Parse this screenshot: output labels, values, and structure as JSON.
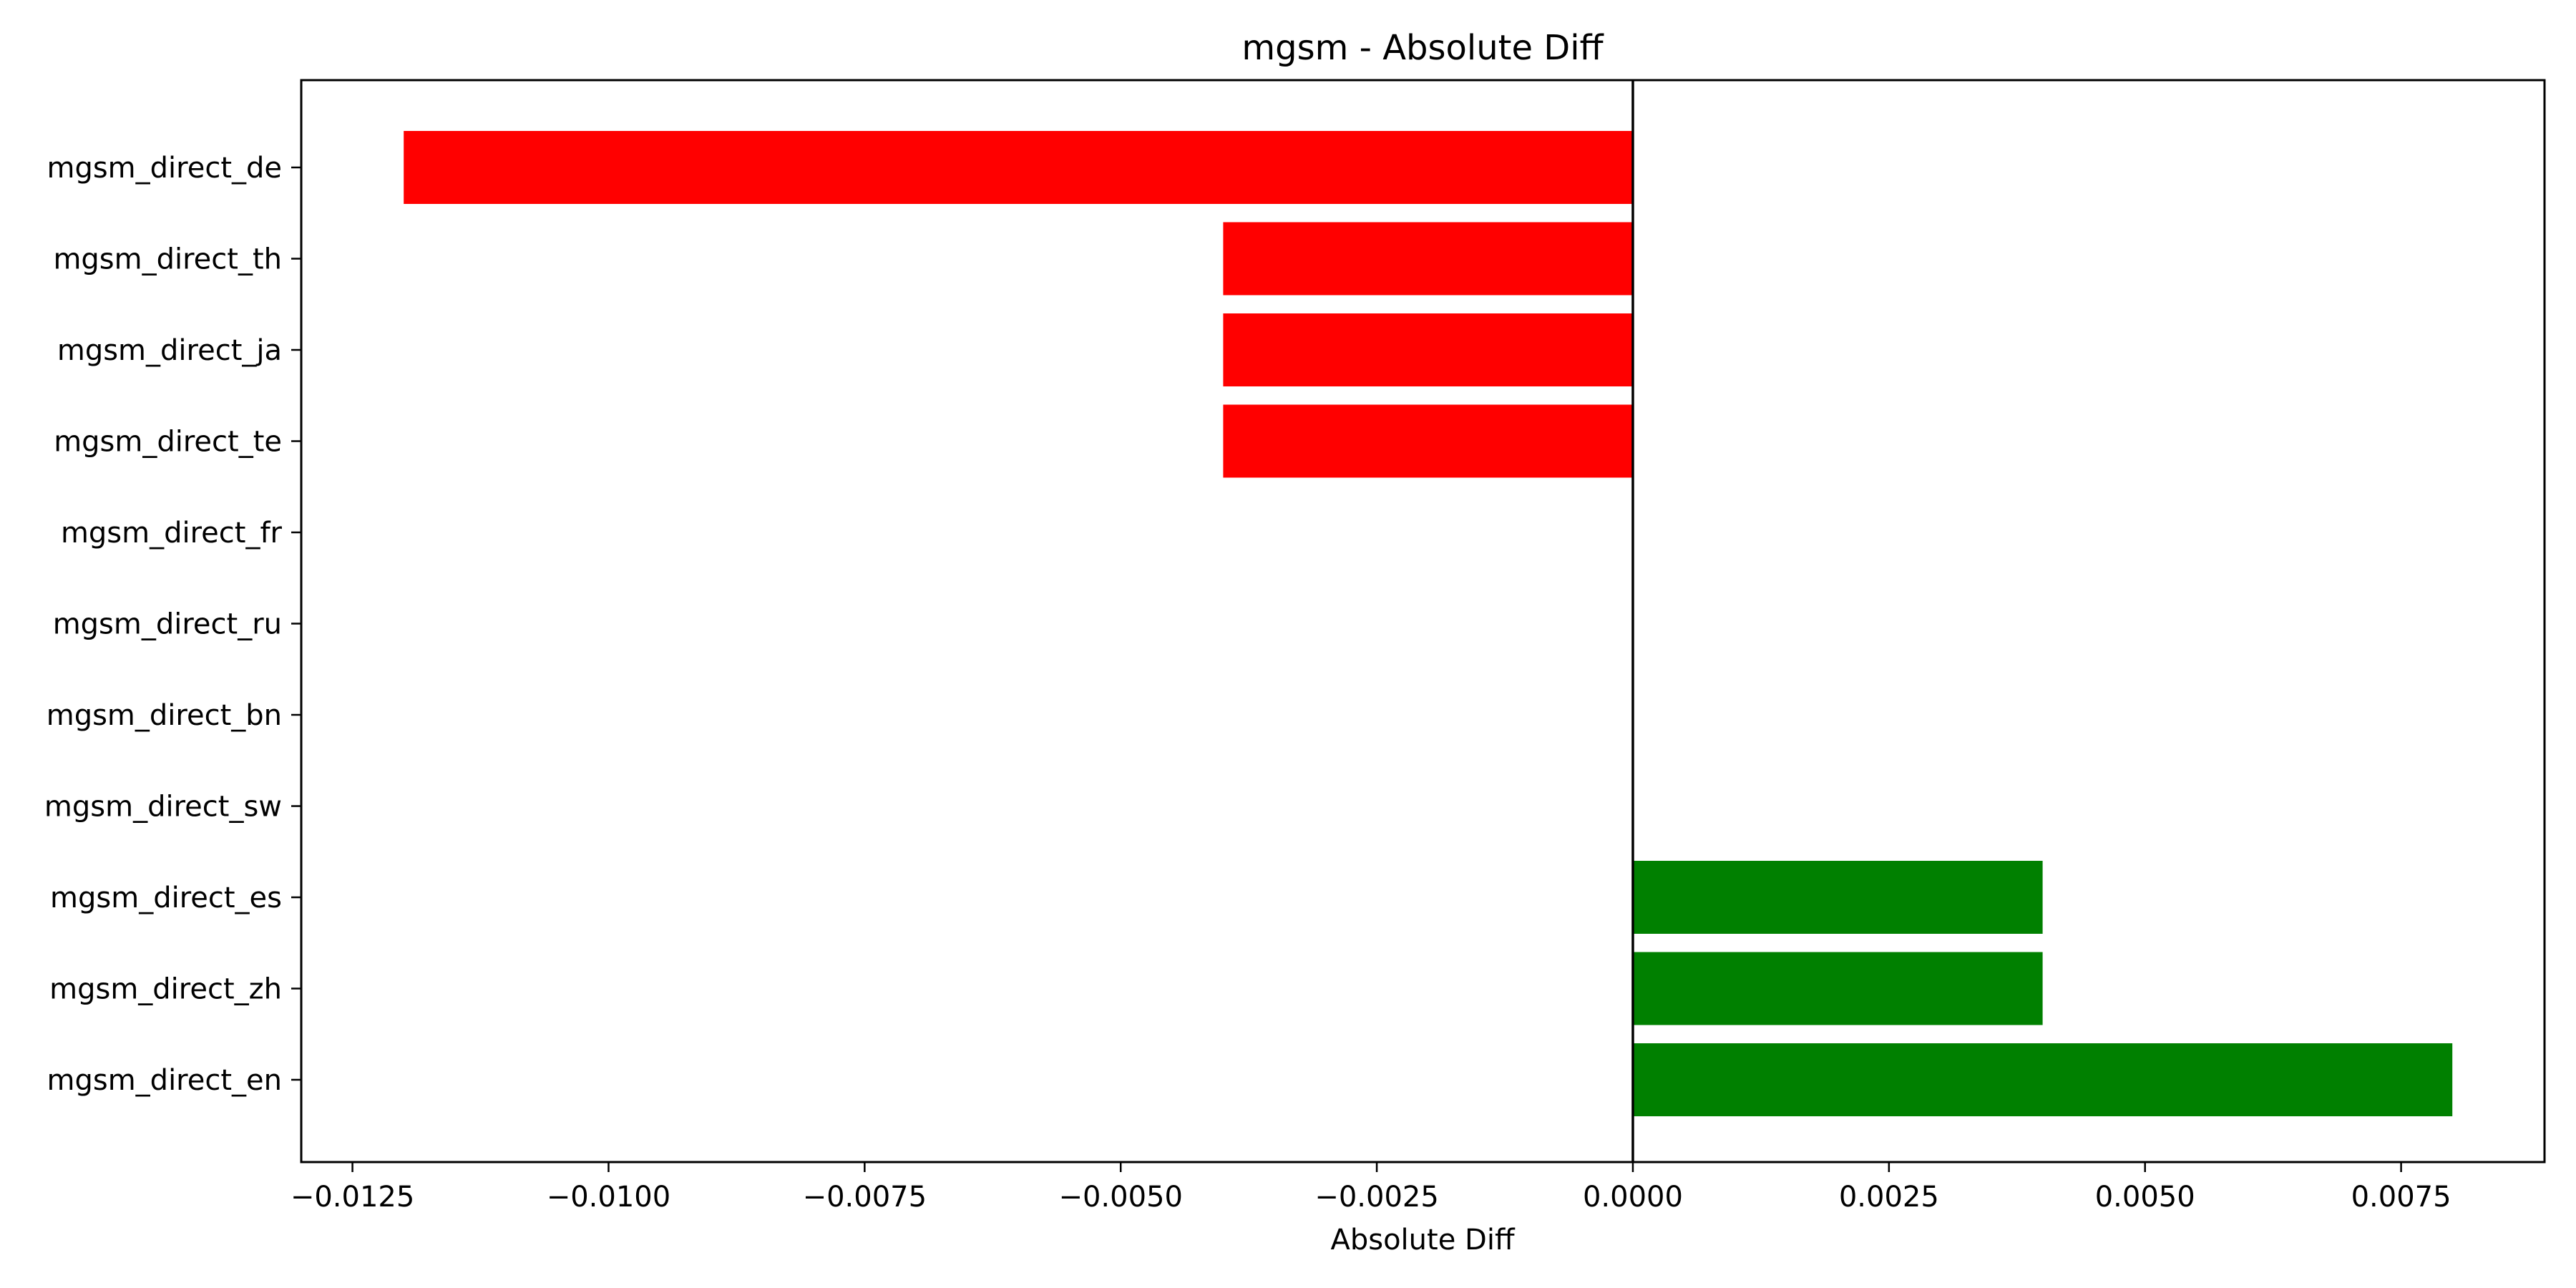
{
  "chart_data": {
    "type": "bar",
    "orientation": "horizontal",
    "title": "mgsm - Absolute Diff",
    "xlabel": "Absolute Diff",
    "ylabel": "",
    "categories": [
      "mgsm_direct_de",
      "mgsm_direct_th",
      "mgsm_direct_ja",
      "mgsm_direct_te",
      "mgsm_direct_fr",
      "mgsm_direct_ru",
      "mgsm_direct_bn",
      "mgsm_direct_sw",
      "mgsm_direct_es",
      "mgsm_direct_zh",
      "mgsm_direct_en"
    ],
    "values": [
      -0.012,
      -0.004,
      -0.004,
      -0.004,
      0,
      0,
      0,
      0,
      0.004,
      0.004,
      0.008
    ],
    "xlim": [
      -0.013,
      0.0089
    ],
    "xticks": [
      -0.0125,
      -0.01,
      -0.0075,
      -0.005,
      -0.0025,
      0,
      0.0025,
      0.005,
      0.0075
    ],
    "xtick_labels": [
      "−0.0125",
      "−0.0100",
      "−0.0075",
      "−0.0050",
      "−0.0025",
      "0.0000",
      "0.0025",
      "0.0050",
      "0.0075"
    ],
    "colors": {
      "negative": "#ff0000",
      "positive": "#008000"
    },
    "grid": false,
    "zero_line": true
  }
}
